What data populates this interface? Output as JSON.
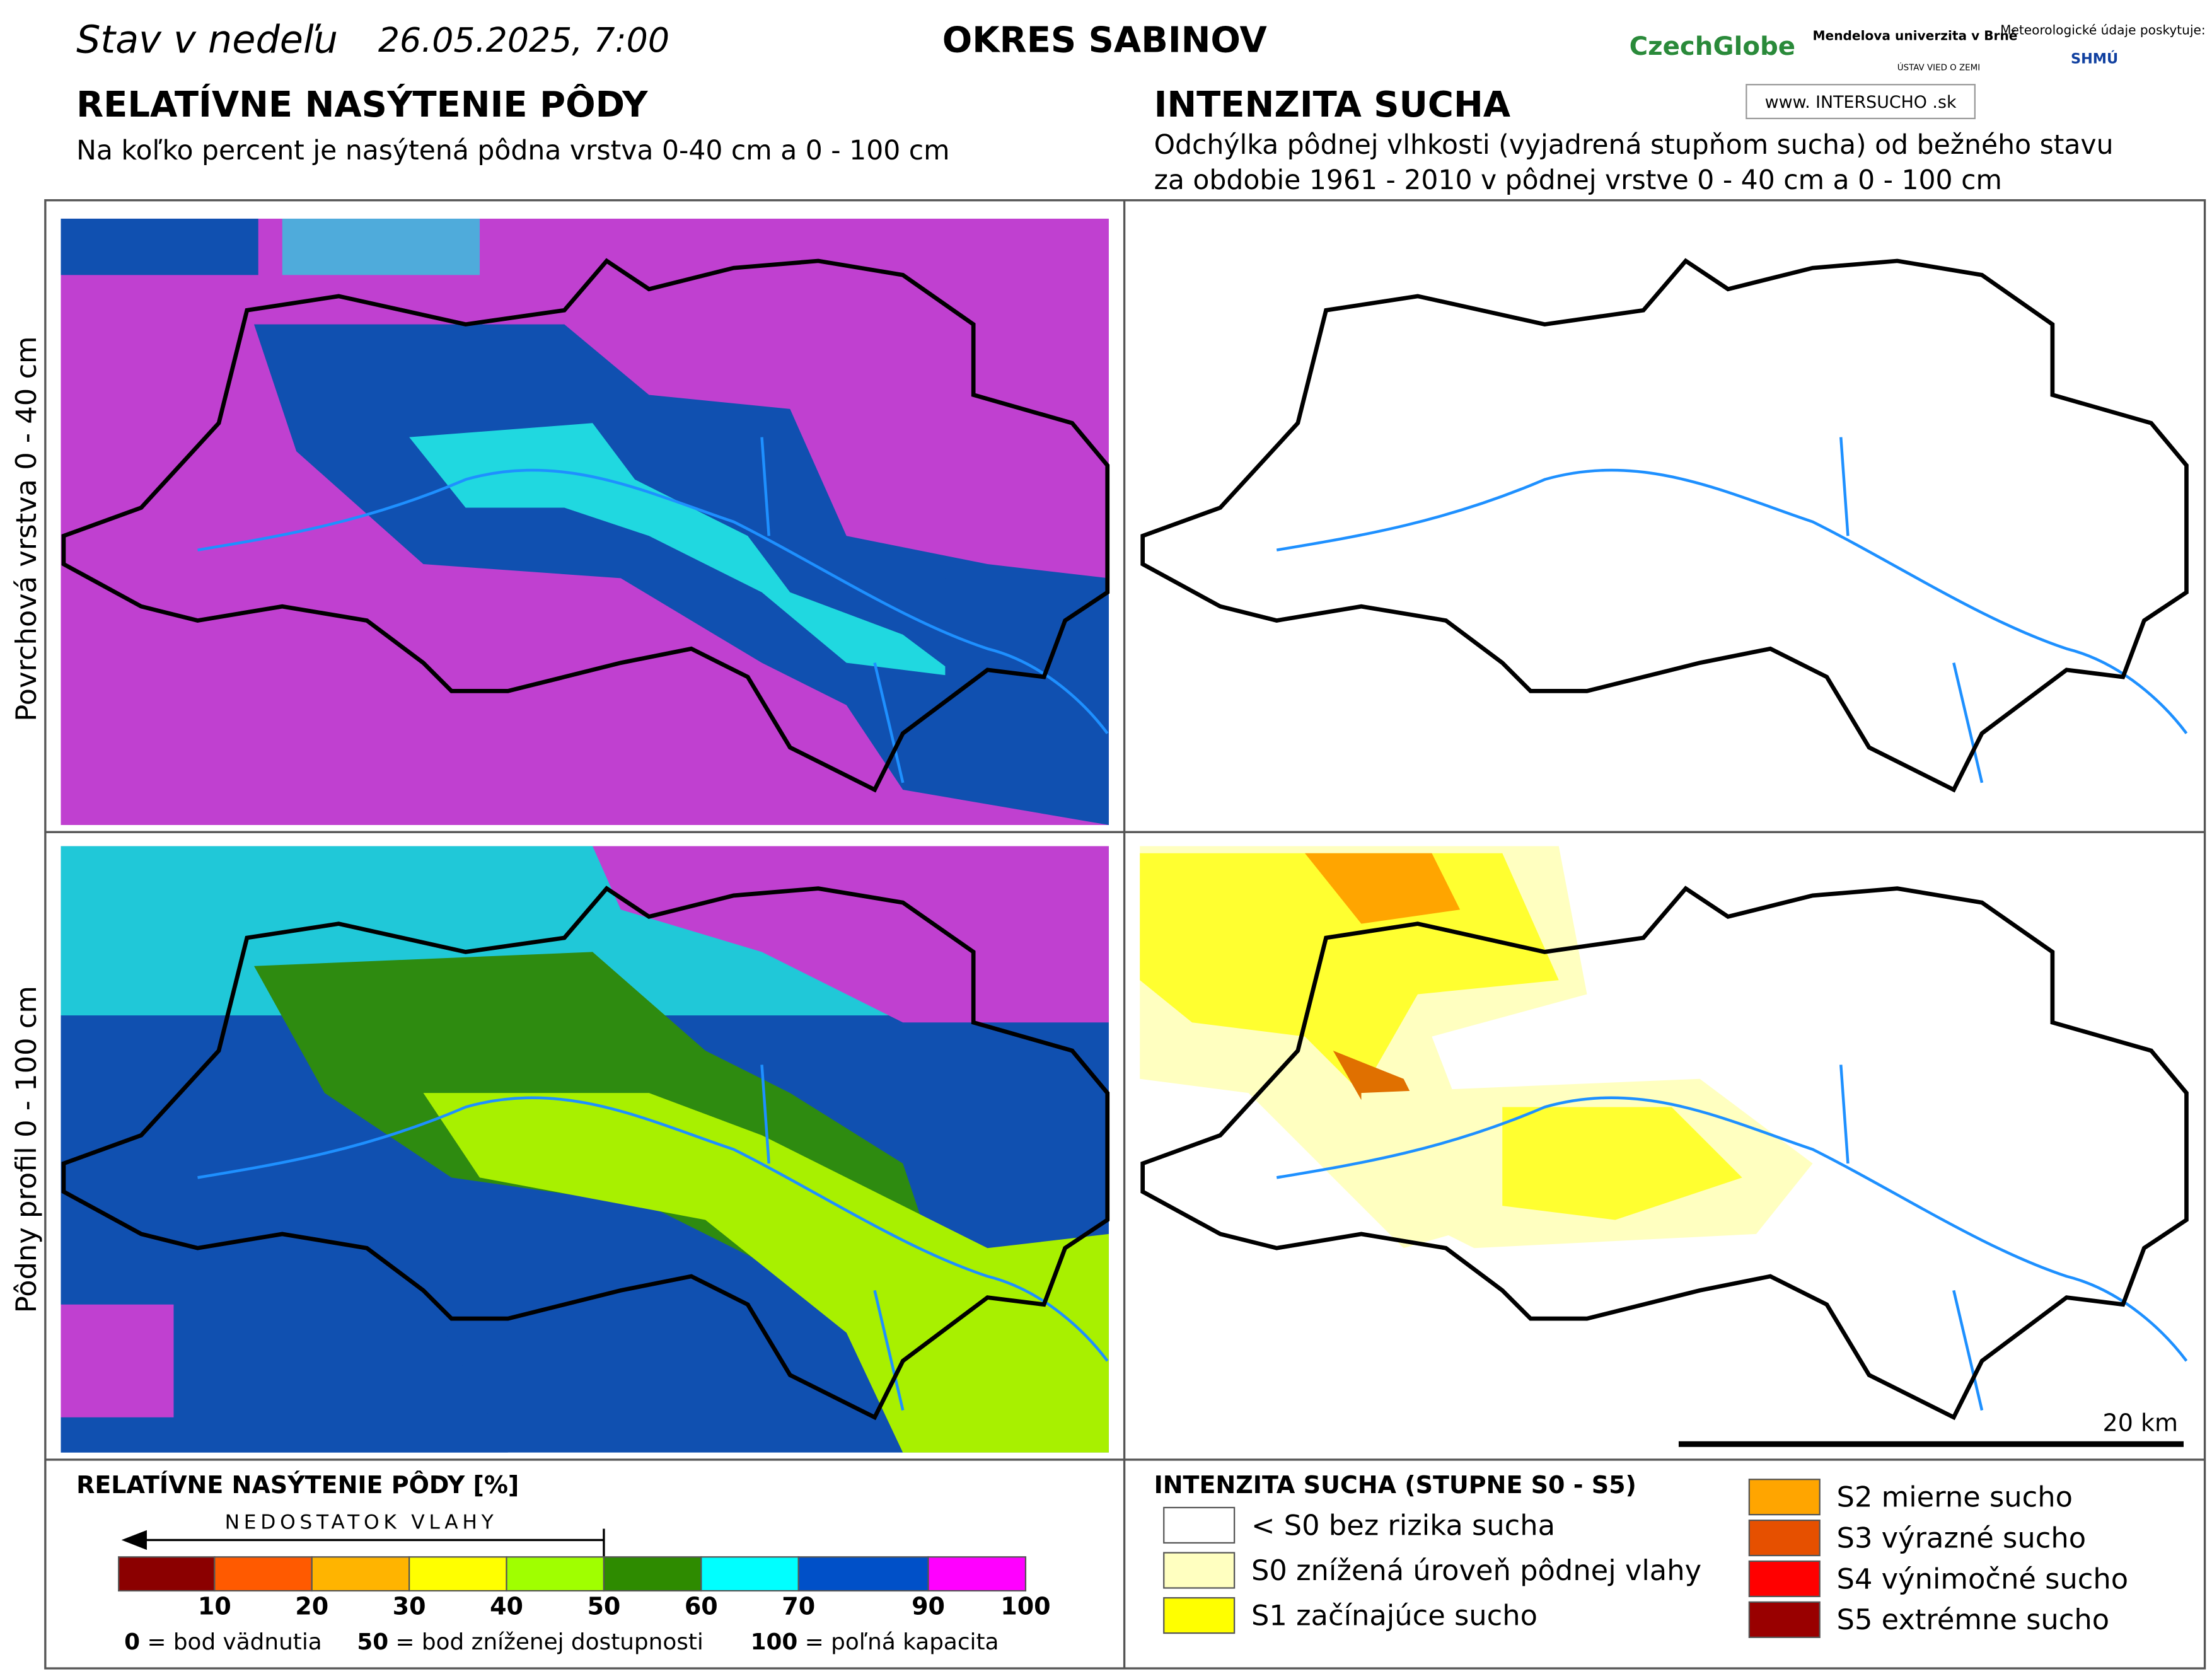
{
  "header": {
    "date_prefix": "Stav v nedeľu",
    "date": "26.05.2025, 7:00",
    "region": "OKRES  SABINOV",
    "logos": [
      "CzechGlobe",
      "Mendelova univerzita v Brně",
      "ÚSTAV VIED O ZEMI",
      "Meteorologické údaje poskytuje:",
      "SHMÚ",
      "www. INTERSUCHO .sk"
    ]
  },
  "left": {
    "title": "RELATÍVNE NASÝTENIE PÔDY",
    "subtitle": "Na koľko percent je nasýtená pôdna vrstva 0-40 cm a 0 - 100 cm"
  },
  "right": {
    "title": "INTENZITA SUCHA",
    "subtitle_lines": [
      "Odchýlka pôdnej vlhkosti (vyjadrená stupňom sucha) od bežného stavu",
      "za obdobie 1961 - 2010 v pôdnej vrstve 0 - 40 cm a 0 - 100 cm"
    ]
  },
  "rows": [
    "Povrchová vrstva 0 - 40 cm",
    "Pôdny profil 0 - 100 cm"
  ],
  "scale_bar": "20 km",
  "legend_left": {
    "title": "RELATÍVNE NASÝTENIE PÔDY [%]",
    "arrow_label": "NEDOSTATOK VLAHY",
    "colors": [
      "#8b0000",
      "#ff5a00",
      "#ffb400",
      "#ffff00",
      "#a0ff00",
      "#2e8b00",
      "#00ffff",
      "#0050c8",
      "#ff00ff"
    ],
    "ticks": [
      10,
      20,
      30,
      40,
      50,
      60,
      70,
      90,
      100
    ],
    "notes": [
      {
        "key": "0",
        "text": "= bod vädnutia"
      },
      {
        "key": "50",
        "text": "= bod zníženej dostupnosti"
      },
      {
        "key": "100",
        "text": "= poľná kapacita"
      }
    ]
  },
  "legend_right": {
    "title": "INTENZITA SUCHA (STUPNE S0 - S5)",
    "items": [
      {
        "label": "< S0 bez rizika sucha",
        "color": "#ffffff"
      },
      {
        "label": "S0 znížená úroveň pôdnej vlahy",
        "color": "#ffffc0"
      },
      {
        "label": "S1 začínajúce sucho",
        "color": "#ffff00"
      },
      {
        "label": "S2 mierne sucho",
        "color": "#ffa500"
      },
      {
        "label": "S3 výrazné sucho",
        "color": "#e65000"
      },
      {
        "label": "S4 výnimočné sucho",
        "color": "#ff0000"
      },
      {
        "label": "S5 extrémne sucho",
        "color": "#990000"
      }
    ]
  }
}
